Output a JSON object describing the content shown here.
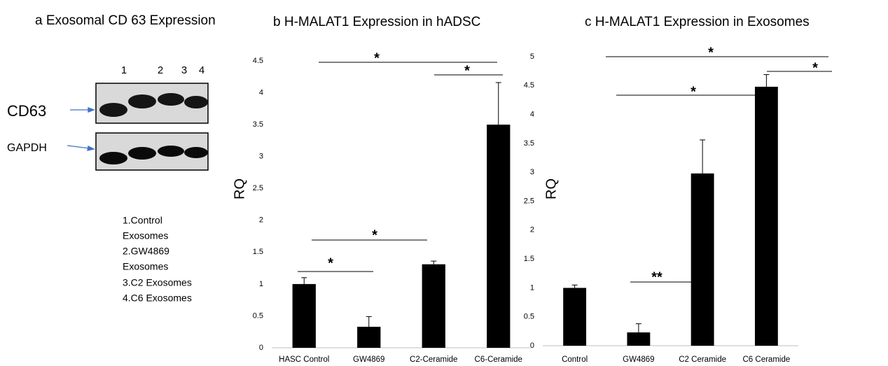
{
  "panel_a": {
    "title": "a  Exosomal CD 63 Expression",
    "lanes": [
      "1",
      "2",
      "3",
      "4"
    ],
    "rows": [
      "CD63",
      "GAPDH"
    ],
    "legend": [
      "1.Control",
      "Exosomes",
      "2.GW4869",
      "Exosomes",
      "3.C2 Exosomes",
      "4.C6 Exosomes"
    ]
  },
  "chart_data": [
    {
      "type": "bar",
      "title": "b  H-MALAT1 Expression in hADSC",
      "ylabel": "RQ",
      "categories": [
        "HASC Control",
        "GW4869",
        "C2-Ceramide",
        "C6-Ceramide"
      ],
      "values": [
        1.0,
        0.33,
        1.31,
        3.5
      ],
      "errors": [
        0.1,
        0.16,
        0.05,
        0.66
      ],
      "color": "#000000",
      "ylim": [
        0,
        4.5
      ],
      "yticks": [
        0,
        0.5,
        1,
        1.5,
        2,
        2.5,
        3,
        3.5,
        4,
        4.5
      ],
      "grid": false,
      "annotations": [
        "*",
        "*",
        "*",
        "*"
      ]
    },
    {
      "type": "bar",
      "title": "c  H-MALAT1 Expression in Exosomes",
      "ylabel": "RQ",
      "categories": [
        "Control",
        "GW4869",
        "C2 Ceramide",
        "C6 Ceramide"
      ],
      "values": [
        1.0,
        0.23,
        2.98,
        4.48
      ],
      "errors": [
        0.05,
        0.15,
        0.58,
        0.21
      ],
      "color": "#000000",
      "ylim": [
        0,
        5
      ],
      "yticks": [
        0,
        0.5,
        1,
        1.5,
        2,
        2.5,
        3,
        3.5,
        4,
        4.5,
        5
      ],
      "grid": false,
      "annotations": [
        "*",
        "*",
        "*",
        "**"
      ]
    }
  ]
}
